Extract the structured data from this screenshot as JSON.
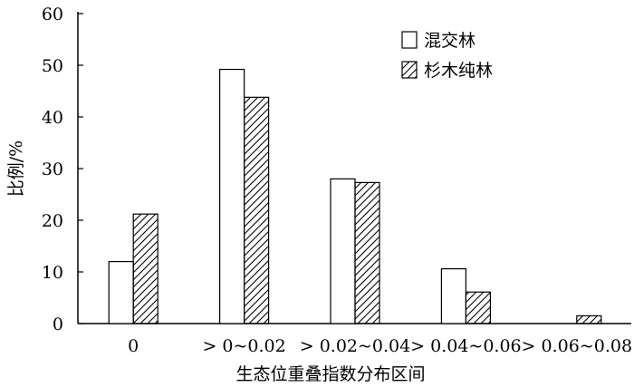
{
  "chart_data": {
    "type": "bar",
    "xlabel": "生态位重叠指数分布区间",
    "ylabel": "比例/%",
    "ylim": [
      0,
      60
    ],
    "yticks": [
      0,
      10,
      20,
      30,
      40,
      50,
      60
    ],
    "grid": false,
    "legend_position": "top-right",
    "categories": [
      "0",
      "> 0~0.02",
      "> 0.02~0.04",
      "> 0.04~0.06",
      "> 0.06~0.08"
    ],
    "series": [
      {
        "name": "混交林",
        "pattern": "open",
        "values": [
          12.0,
          49.2,
          28.0,
          10.6,
          0.0
        ]
      },
      {
        "name": "杉木纯林",
        "pattern": "hatched",
        "values": [
          21.2,
          43.8,
          27.3,
          6.1,
          1.5
        ]
      }
    ]
  },
  "colors": {
    "ink": "#000000",
    "background": "#ffffff"
  }
}
